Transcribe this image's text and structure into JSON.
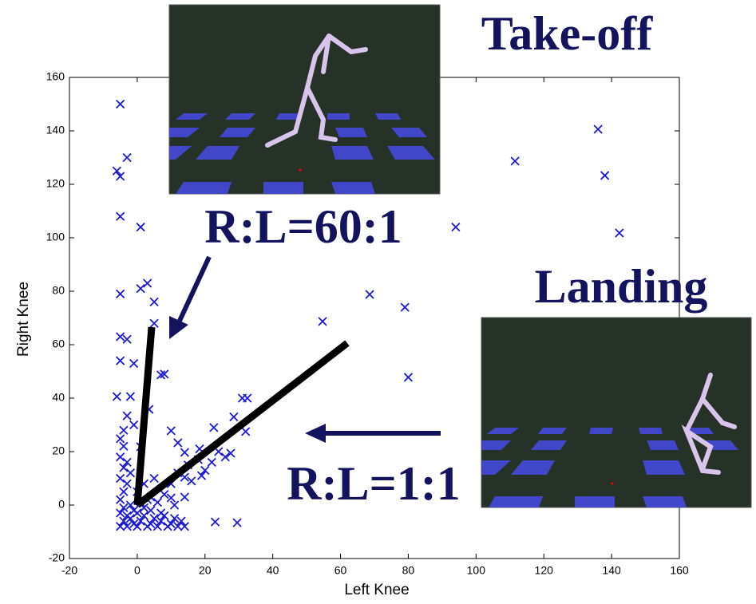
{
  "chart_data": {
    "type": "scatter",
    "xlabel": "Left Knee",
    "ylabel": "Right Knee",
    "xlim": [
      -20,
      160
    ],
    "ylim": [
      -20,
      160
    ],
    "xticks": [
      -20,
      0,
      20,
      40,
      60,
      80,
      100,
      120,
      140,
      160
    ],
    "yticks": [
      -20,
      0,
      20,
      40,
      60,
      80,
      100,
      120,
      140,
      160
    ],
    "color": "#1a1ad6",
    "x": [
      -5,
      -3,
      -6,
      -5,
      -5,
      1,
      3,
      1,
      5,
      -5,
      5,
      -5,
      -3,
      -5,
      -1,
      8,
      7,
      -6,
      -2,
      -3,
      3.5,
      10,
      22.6,
      28.5,
      31,
      32.5,
      32,
      -5,
      -4,
      1,
      12,
      18.4,
      27.6,
      14,
      14,
      23,
      29.5,
      10,
      54.7,
      68.6,
      79,
      80,
      94,
      111.5,
      136,
      138,
      142.3,
      -5,
      -4,
      -3,
      -2,
      -1,
      0,
      1,
      2,
      3,
      4,
      5,
      6,
      7,
      8,
      9,
      10,
      11,
      12,
      13,
      14,
      -5,
      -4,
      -3,
      -2,
      -1,
      0,
      1,
      2,
      3,
      4,
      -5,
      -4,
      -3,
      -5,
      -4,
      -3,
      -5,
      0,
      2,
      4,
      6,
      8,
      5,
      10,
      12,
      15,
      18,
      20,
      24,
      26,
      14,
      16,
      19,
      22,
      -2,
      -1,
      -4,
      7,
      11
    ],
    "values": [
      150,
      130,
      125,
      123,
      108,
      104,
      83,
      81,
      76,
      79,
      68,
      63,
      62,
      54,
      53,
      49,
      48.7,
      40.6,
      40.6,
      33.4,
      35.8,
      27.8,
      29,
      33,
      40,
      40,
      27.5,
      24.8,
      22,
      21.8,
      23.3,
      21,
      19.4,
      19.7,
      10.4,
      -6.3,
      -6.6,
      2.7,
      68.7,
      78.8,
      74,
      47.8,
      104,
      128.7,
      140.6,
      123.3,
      101.8,
      -8,
      -6,
      -8,
      -5,
      -7,
      -8,
      -6,
      -4,
      -8,
      -7,
      -5,
      -8,
      -6,
      -4,
      -8,
      -7,
      -5,
      -8,
      -6,
      -8,
      -3,
      -1,
      -4,
      0,
      -2,
      -3,
      1,
      -1,
      2,
      -2,
      2,
      5,
      8,
      10,
      14,
      16,
      18,
      5,
      8,
      3,
      1,
      4,
      10,
      8,
      12,
      15,
      17,
      13,
      20,
      18,
      3,
      9,
      11,
      16,
      12,
      30,
      28,
      -3,
      0
    ]
  },
  "annotations": {
    "takeoff": "Take-off",
    "landing": "Landing",
    "ratio_takeoff": "R:L=60:1",
    "ratio_landing": "R:L=1:1"
  }
}
